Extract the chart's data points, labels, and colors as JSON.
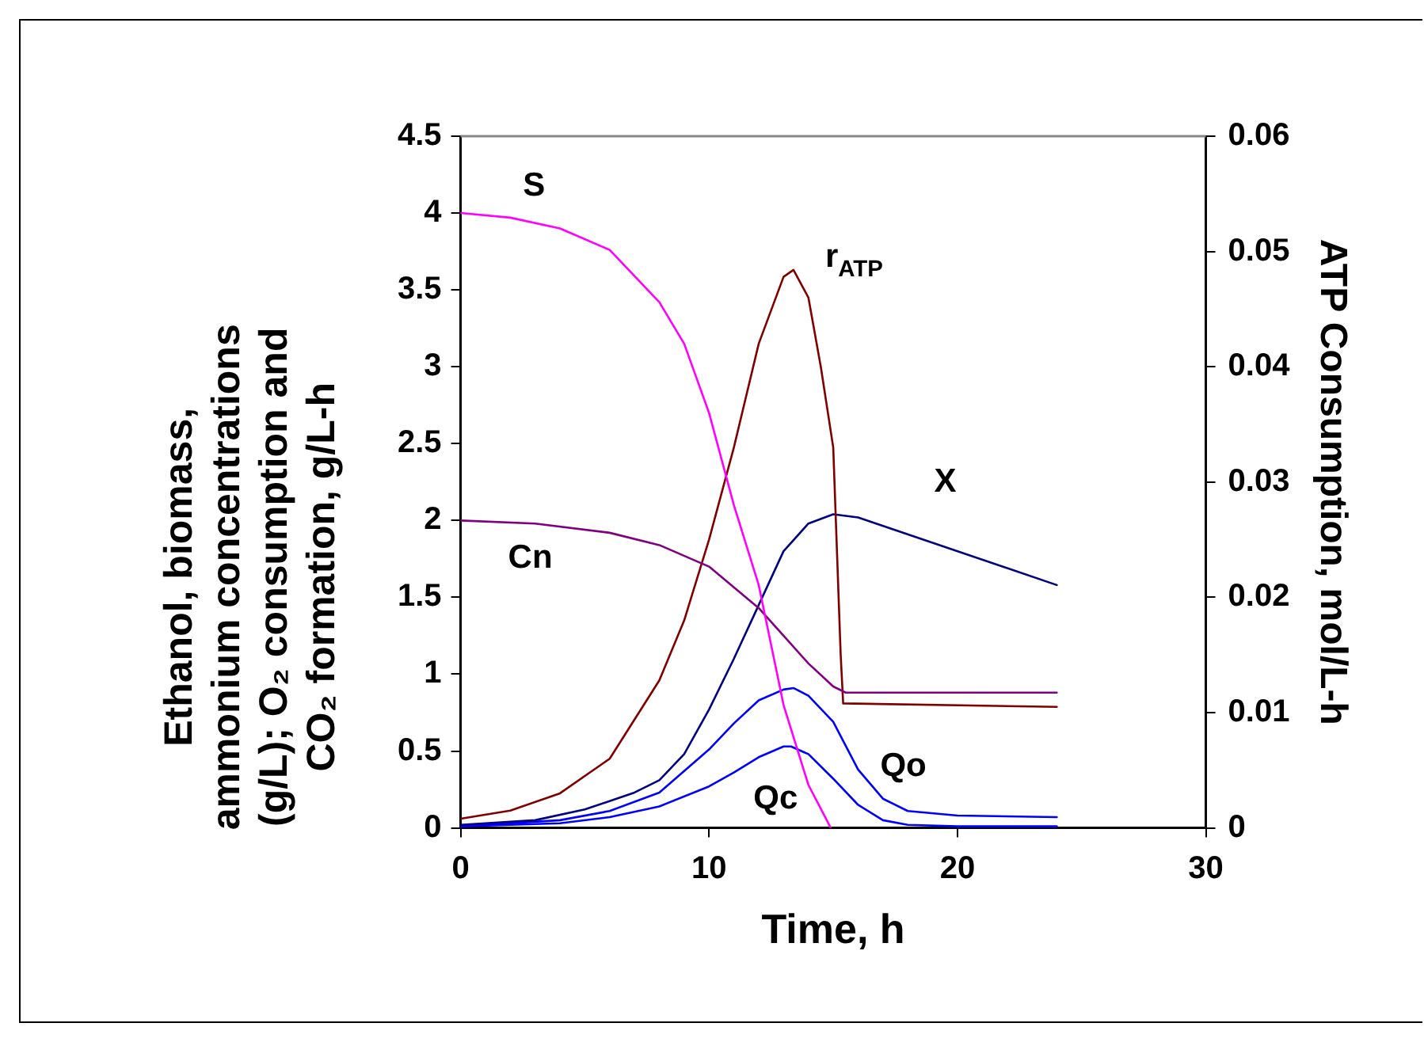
{
  "chart_data": {
    "type": "line",
    "xlabel": "Time, h",
    "ylabel": "Ethanol, biomass, ammonium concentrations (g/L); O₂ consumption and CO₂ formation, g/L-h",
    "y2label": "ATP Consumption, mol/L-h",
    "xlim": [
      0,
      30
    ],
    "xticks": [
      0,
      10,
      20,
      30
    ],
    "ylim": [
      0,
      4.5
    ],
    "yticks": [
      0,
      0.5,
      1,
      1.5,
      2,
      2.5,
      3,
      3.5,
      4,
      4.5
    ],
    "y2lim": [
      0,
      0.06
    ],
    "y2ticks": [
      0,
      0.01,
      0.02,
      0.03,
      0.04,
      0.05,
      0.06
    ],
    "grid": false,
    "legend": false,
    "marker": "none",
    "line_style": "solid",
    "series": [
      {
        "name": "S",
        "color": "#ff00ff",
        "x": [
          0,
          2,
          4,
          6,
          8,
          9,
          10,
          11,
          12,
          13,
          14,
          14.9
        ],
        "values": [
          4.0,
          3.97,
          3.9,
          3.76,
          3.42,
          3.15,
          2.7,
          2.1,
          1.58,
          0.8,
          0.28,
          0
        ]
      },
      {
        "name": "Cn",
        "color": "#800080",
        "x": [
          0,
          3,
          6,
          8,
          10,
          12,
          13,
          14,
          15,
          15.5,
          24
        ],
        "values": [
          2.0,
          1.98,
          1.92,
          1.84,
          1.7,
          1.43,
          1.25,
          1.07,
          0.92,
          0.88,
          0.88
        ]
      },
      {
        "name": "r$_{ATP}$",
        "color": "#800000",
        "axis": "y2",
        "x": [
          0,
          2,
          4,
          6,
          8,
          9,
          10,
          11,
          12,
          13,
          13.4,
          14,
          14.5,
          15,
          15.3,
          15.4,
          24
        ],
        "values": [
          0.0008,
          0.0015,
          0.003,
          0.006,
          0.0128,
          0.018,
          0.025,
          0.033,
          0.042,
          0.0478,
          0.0484,
          0.046,
          0.04,
          0.033,
          0.015,
          0.0108,
          0.0105
        ]
      },
      {
        "name": "X",
        "color": "#000080",
        "x": [
          0,
          3,
          5,
          7,
          8,
          9,
          10,
          11,
          12,
          13,
          14,
          15,
          16,
          24
        ],
        "values": [
          0.02,
          0.05,
          0.12,
          0.23,
          0.31,
          0.48,
          0.77,
          1.1,
          1.45,
          1.8,
          1.98,
          2.04,
          2.02,
          1.58
        ]
      },
      {
        "name": "Qo",
        "color": "#0000ff",
        "x": [
          0,
          4,
          6,
          8,
          10,
          11,
          12,
          13,
          13.4,
          14,
          15,
          16,
          17,
          18,
          20,
          24
        ],
        "values": [
          0.01,
          0.05,
          0.11,
          0.23,
          0.51,
          0.68,
          0.83,
          0.9,
          0.91,
          0.86,
          0.69,
          0.38,
          0.19,
          0.11,
          0.08,
          0.07
        ]
      },
      {
        "name": "Qc",
        "color": "#0000ff",
        "x": [
          0,
          4,
          6,
          8,
          10,
          11,
          12,
          13,
          13.3,
          14,
          15,
          16,
          17,
          18,
          20,
          24
        ],
        "values": [
          0.01,
          0.03,
          0.07,
          0.14,
          0.27,
          0.36,
          0.46,
          0.53,
          0.53,
          0.48,
          0.32,
          0.15,
          0.05,
          0.02,
          0.01,
          0.01
        ]
      }
    ]
  }
}
